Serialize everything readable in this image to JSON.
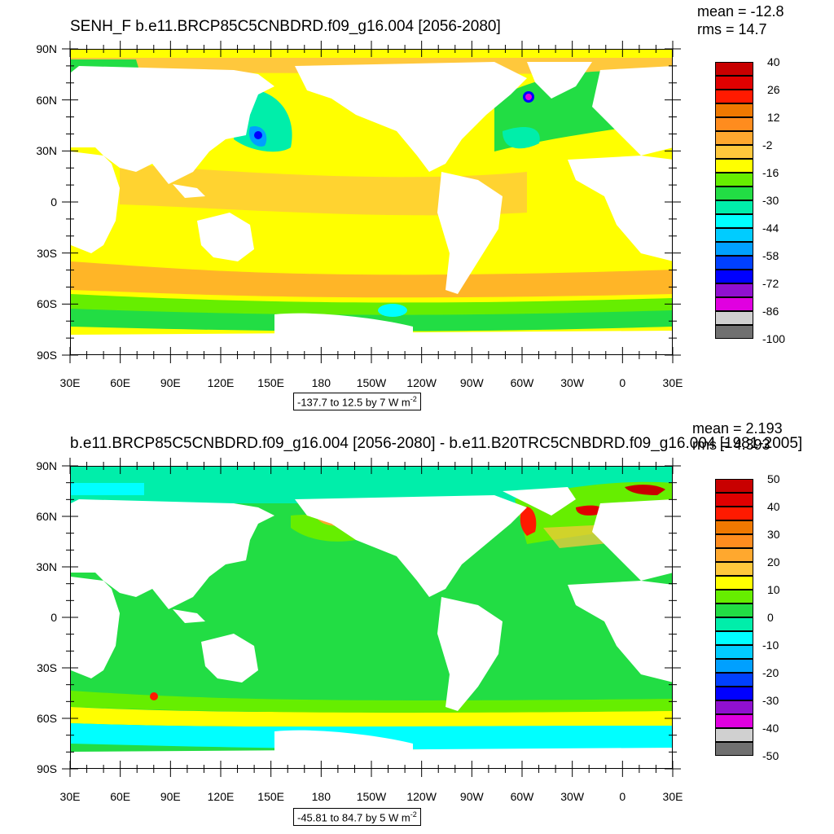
{
  "panels": [
    {
      "title": "SENH_F b.e11.BRCP85C5CNBDRD.f09_g16.004 [2056-2080]",
      "mean": "mean = -12.8",
      "rms": "rms = 14.7",
      "range_label": "-137.7 to 12.5 by 7  W m",
      "range_sup": "-2",
      "ocean_color": "#ffff00",
      "colorbar": {
        "colors": [
          "#c80000",
          "#e00000",
          "#ff1a00",
          "#ef7800",
          "#ff8c1e",
          "#ffa82e",
          "#ffc83c",
          "#ffff00",
          "#66ee00",
          "#22dd44",
          "#00eeaa",
          "#00ffff",
          "#00ccff",
          "#00a0ff",
          "#0040ff",
          "#0000ff",
          "#9010d0",
          "#e000e0",
          "#d0d0d0",
          "#707070"
        ],
        "labels": [
          "40",
          "26",
          "12",
          "-2",
          "-16",
          "-30",
          "-44",
          "-58",
          "-72",
          "-86",
          "-100"
        ]
      }
    },
    {
      "title": "b.e11.BRCP85C5CNBDRD.f09_g16.004 [2056-2080] - b.e11.B20TRC5CNBDRD.f09_g16.004 [1981-2005]",
      "mean": "mean = 2.193",
      "rms": "rms = 4.393",
      "range_label": "-45.81 to 84.7 by 5  W m",
      "range_sup": "-2",
      "ocean_color": "#22dd44",
      "colorbar": {
        "colors": [
          "#c80000",
          "#e00000",
          "#ff1a00",
          "#ef7800",
          "#ff8c1e",
          "#ffa82e",
          "#ffc83c",
          "#ffff00",
          "#66ee00",
          "#22dd44",
          "#00eeaa",
          "#00ffff",
          "#00ccff",
          "#00a0ff",
          "#0040ff",
          "#0000ff",
          "#9010d0",
          "#e000e0",
          "#d0d0d0",
          "#707070"
        ],
        "labels": [
          "50",
          "40",
          "30",
          "20",
          "10",
          "0",
          "-10",
          "-20",
          "-30",
          "-40",
          "-50"
        ]
      }
    }
  ],
  "axes": {
    "lat_labels": [
      "90N",
      "60N",
      "30N",
      "0",
      "30S",
      "60S",
      "90S"
    ],
    "lon_labels": [
      "30E",
      "60E",
      "90E",
      "120E",
      "150E",
      "180",
      "150W",
      "120W",
      "90W",
      "60W",
      "30W",
      "0",
      "30E"
    ]
  },
  "icons": {
    "colorbar": "legend-colorbar",
    "map": "global-map"
  }
}
